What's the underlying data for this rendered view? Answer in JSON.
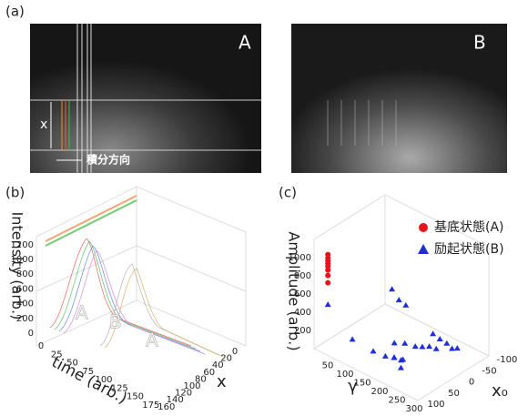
{
  "panel_a": {
    "label": "(a)",
    "photo_A_label": "A",
    "photo_B_label": "B",
    "x_label": "x",
    "arrow_label": "積分方向"
  },
  "panel_b": {
    "label": "(b)",
    "z_label": "Intensity (arb.)",
    "time_label": "time (arb.)",
    "x_label": "x",
    "z_ticks": [
      0,
      200,
      400,
      600,
      800,
      1000,
      1200
    ],
    "time_ticks": [
      0,
      25,
      50,
      75,
      100,
      125,
      150,
      175
    ],
    "x_ticks": [
      0,
      20,
      40,
      60,
      80,
      100,
      120,
      140,
      160
    ],
    "annotations": [
      "A",
      "B",
      "A"
    ]
  },
  "chart_data": {
    "type": "scatter3d",
    "panel_label": "(c)",
    "xlabel": "γ",
    "ylabel": "x₀",
    "zlabel": "Amplitude (arb.)",
    "xlim": [
      0,
      300
    ],
    "ylim": [
      100,
      -100
    ],
    "zlim": [
      0,
      1200
    ],
    "xticks": [
      50,
      100,
      150,
      200,
      250,
      300
    ],
    "yticks": [
      100,
      50,
      0,
      -50,
      -100
    ],
    "zticks": [
      200,
      400,
      600,
      800,
      1000
    ],
    "series": [
      {
        "name": "基底状態(A)",
        "color": "#e8141b",
        "marker": "circle",
        "x": [
          40,
          40,
          40,
          40,
          40,
          40,
          40,
          40
        ],
        "y": [
          100,
          100,
          100,
          100,
          100,
          100,
          100,
          100
        ],
        "z": [
          800,
          880,
          940,
          980,
          1010,
          1040,
          1070,
          1110
        ]
      },
      {
        "name": "励起状態(B)",
        "color": "#1f2fd8",
        "marker": "triangle",
        "x": [
          40,
          80,
          130,
          160,
          180,
          200,
          210,
          150,
          170,
          190,
          200,
          215,
          230,
          200,
          220,
          240,
          250,
          260,
          20,
          40,
          60,
          170,
          185
        ],
        "y": [
          100,
          70,
          60,
          55,
          50,
          50,
          60,
          20,
          10,
          0,
          -10,
          -15,
          -20,
          -40,
          -40,
          -40,
          -45,
          -50,
          -100,
          -100,
          -100,
          40,
          30
        ],
        "z": [
          560,
          180,
          120,
          110,
          120,
          130,
          90,
          150,
          160,
          140,
          130,
          150,
          140,
          200,
          180,
          170,
          120,
          130,
          200,
          120,
          100,
          80,
          60
        ]
      }
    ],
    "legend": "upper right"
  }
}
